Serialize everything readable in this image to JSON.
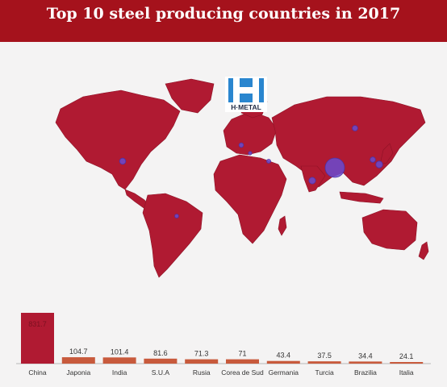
{
  "header": {
    "title": "Top 10 steel producing countries in 2017"
  },
  "logo": {
    "text": "H·METAL",
    "letter": "H"
  },
  "colors": {
    "header_bg": "#a5121c",
    "map_fill": "#b01a32",
    "bubble": "#6a4bd0",
    "bar_top": "#b01a32",
    "bar_other": "#c85a3c",
    "page_bg": "#f4f3f3"
  },
  "chart_data": {
    "type": "bar",
    "title": "",
    "xlabel": "",
    "ylabel": "",
    "categories": [
      "China",
      "Japonia",
      "India",
      "S.U.A",
      "Rusia",
      "Corea de Sud",
      "Germania",
      "Turcia",
      "Brazilia",
      "Italia"
    ],
    "values": [
      831.7,
      104.7,
      101.4,
      81.6,
      71.3,
      71,
      43.4,
      37.5,
      34.4,
      24.1
    ],
    "data_labels": [
      "831.7",
      "104.7",
      "101.4",
      "81.6",
      "71.3",
      "71",
      "43.4",
      "37.5",
      "34.4",
      "24.1"
    ],
    "ylim": [
      0,
      831.7
    ],
    "grid": false
  }
}
